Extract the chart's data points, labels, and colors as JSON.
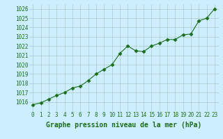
{
  "x": [
    0,
    1,
    2,
    3,
    4,
    5,
    6,
    7,
    8,
    9,
    10,
    11,
    12,
    13,
    14,
    15,
    16,
    17,
    18,
    19,
    20,
    21,
    22,
    23
  ],
  "y": [
    1015.7,
    1015.9,
    1016.3,
    1016.7,
    1017.0,
    1017.5,
    1017.7,
    1018.3,
    1019.0,
    1019.5,
    1020.0,
    1021.2,
    1022.0,
    1021.5,
    1021.4,
    1022.0,
    1022.3,
    1022.7,
    1022.7,
    1023.2,
    1023.3,
    1024.7,
    1025.0,
    1026.0
  ],
  "line_color": "#1a6e1a",
  "marker": "D",
  "marker_size": 2.5,
  "bg_color": "#cceeff",
  "grid_color": "#b0c8c8",
  "xlabel": "Graphe pression niveau de la mer (hPa)",
  "xlabel_fontsize": 7,
  "xlabel_color": "#1a6e1a",
  "xlabel_bold": true,
  "ylim": [
    1015.0,
    1026.5
  ],
  "yticks": [
    1016,
    1017,
    1018,
    1019,
    1020,
    1021,
    1022,
    1023,
    1024,
    1025,
    1026
  ],
  "xticks": [
    0,
    1,
    2,
    3,
    4,
    5,
    6,
    7,
    8,
    9,
    10,
    11,
    12,
    13,
    14,
    15,
    16,
    17,
    18,
    19,
    20,
    21,
    22,
    23
  ],
  "tick_fontsize": 5.5,
  "tick_color": "#1a6e1a"
}
